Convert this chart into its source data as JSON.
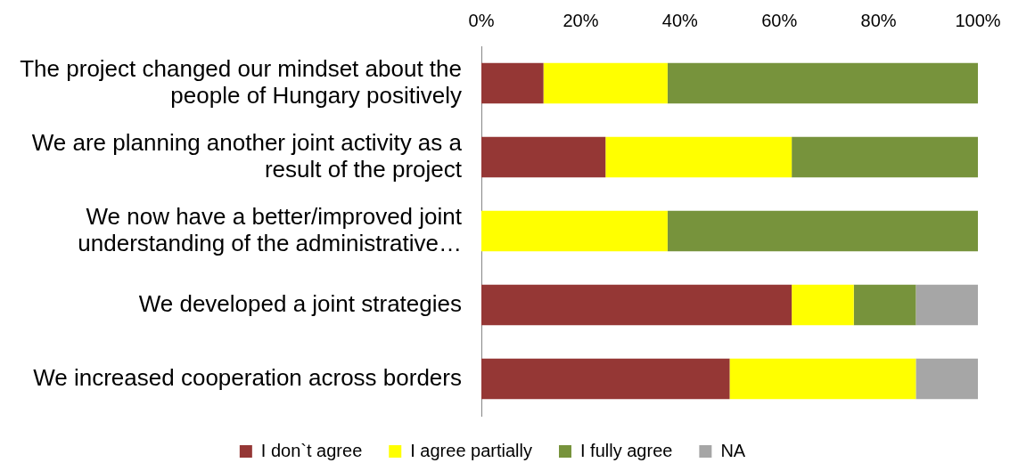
{
  "chart_data": {
    "type": "bar",
    "orientation": "horizontal",
    "stacked": true,
    "categories": [
      "The project changed our mindset about the people of Hungary positively",
      "We are planning another joint activity as a result of the project",
      "We now have a better/improved joint understanding of the administrative…",
      "We developed a joint strategies",
      "We increased cooperation across borders"
    ],
    "series": [
      {
        "name": "I don`t agree",
        "color": "#953735",
        "values": [
          12.5,
          25,
          0,
          62.5,
          50
        ]
      },
      {
        "name": "I agree partially",
        "color": "#ffff00",
        "values": [
          25,
          37.5,
          37.5,
          12.5,
          37.5
        ]
      },
      {
        "name": "I fully agree",
        "color": "#77933c",
        "values": [
          62.5,
          37.5,
          62.5,
          12.5,
          0
        ]
      },
      {
        "name": "NA",
        "color": "#a6a6a6",
        "values": [
          0,
          0,
          0,
          12.5,
          12.5
        ]
      }
    ],
    "xlim": [
      0,
      100
    ],
    "xticks": [
      {
        "value": 0,
        "label": "0%"
      },
      {
        "value": 20,
        "label": "20%"
      },
      {
        "value": 40,
        "label": "40%"
      },
      {
        "value": 60,
        "label": "60%"
      },
      {
        "value": 80,
        "label": "80%"
      },
      {
        "value": 100,
        "label": "100%"
      }
    ],
    "grid": false,
    "legend": "bottom"
  }
}
